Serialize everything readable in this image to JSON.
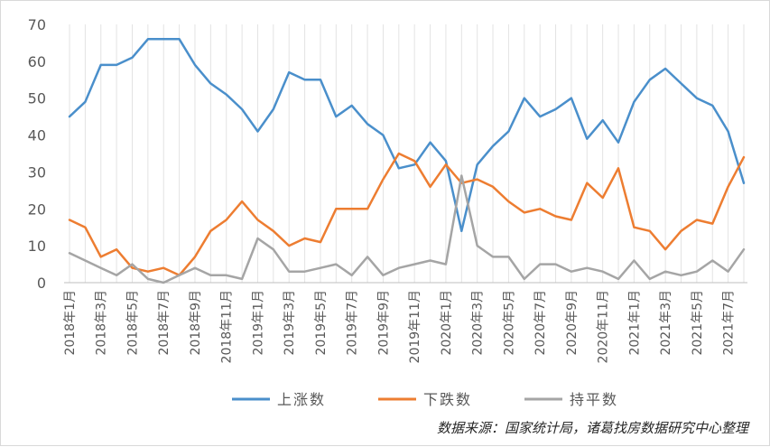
{
  "chart_data": {
    "type": "line",
    "title": "",
    "xlabel": "",
    "ylabel": "",
    "ylim": [
      0,
      70
    ],
    "yticks": [
      0,
      10,
      20,
      30,
      40,
      50,
      60,
      70
    ],
    "grid": "vertical",
    "legend_position": "bottom",
    "x": [
      "2018年1月",
      "2018年2月",
      "2018年3月",
      "2018年4月",
      "2018年5月",
      "2018年6月",
      "2018年7月",
      "2018年8月",
      "2018年9月",
      "2018年10月",
      "2018年11月",
      "2018年12月",
      "2019年1月",
      "2019年2月",
      "2019年3月",
      "2019年4月",
      "2019年5月",
      "2019年6月",
      "2019年7月",
      "2019年8月",
      "2019年9月",
      "2019年10月",
      "2019年11月",
      "2019年12月",
      "2020年1月",
      "2020年2月",
      "2020年3月",
      "2020年4月",
      "2020年5月",
      "2020年6月",
      "2020年7月",
      "2020年8月",
      "2020年9月",
      "2020年10月",
      "2020年11月",
      "2020年12月",
      "2021年1月",
      "2021年2月",
      "2021年3月",
      "2021年4月",
      "2021年5月",
      "2021年6月",
      "2021年7月",
      "2021年8月"
    ],
    "x_tick_labels": [
      "2018年1月",
      "2018年3月",
      "2018年5月",
      "2018年7月",
      "2018年9月",
      "2018年11月",
      "2019年1月",
      "2019年3月",
      "2019年5月",
      "2019年7月",
      "2019年9月",
      "2019年11月",
      "2020年1月",
      "2020年3月",
      "2020年5月",
      "2020年7月",
      "2020年9月",
      "2020年11月",
      "2021年1月",
      "2021年3月",
      "2021年5月",
      "2021年7月"
    ],
    "series": [
      {
        "name": "上涨数",
        "color": "#4a8fcb",
        "values": [
          45,
          49,
          59,
          59,
          61,
          66,
          66,
          66,
          59,
          54,
          51,
          47,
          41,
          47,
          57,
          55,
          55,
          45,
          48,
          43,
          40,
          31,
          32,
          38,
          33,
          14,
          32,
          37,
          41,
          50,
          45,
          47,
          50,
          39,
          44,
          38,
          49,
          55,
          58,
          54,
          50,
          48,
          41,
          27
        ]
      },
      {
        "name": "下跌数",
        "color": "#ed7d31",
        "values": [
          17,
          15,
          7,
          9,
          4,
          3,
          4,
          2,
          7,
          14,
          17,
          22,
          17,
          14,
          10,
          12,
          11,
          20,
          20,
          20,
          28,
          35,
          33,
          26,
          32,
          27,
          28,
          26,
          22,
          19,
          20,
          18,
          17,
          27,
          23,
          31,
          15,
          14,
          9,
          14,
          17,
          16,
          26,
          34
        ]
      },
      {
        "name": "持平数",
        "color": "#a5a5a5",
        "values": [
          8,
          6,
          4,
          2,
          5,
          1,
          0,
          2,
          4,
          2,
          2,
          1,
          12,
          9,
          3,
          3,
          4,
          5,
          2,
          7,
          2,
          4,
          5,
          6,
          5,
          29,
          10,
          7,
          7,
          1,
          5,
          5,
          3,
          4,
          3,
          1,
          6,
          1,
          3,
          2,
          3,
          6,
          3,
          9
        ]
      }
    ]
  },
  "source": "数据来源：国家统计局，诸葛找房数据研究中心整理"
}
